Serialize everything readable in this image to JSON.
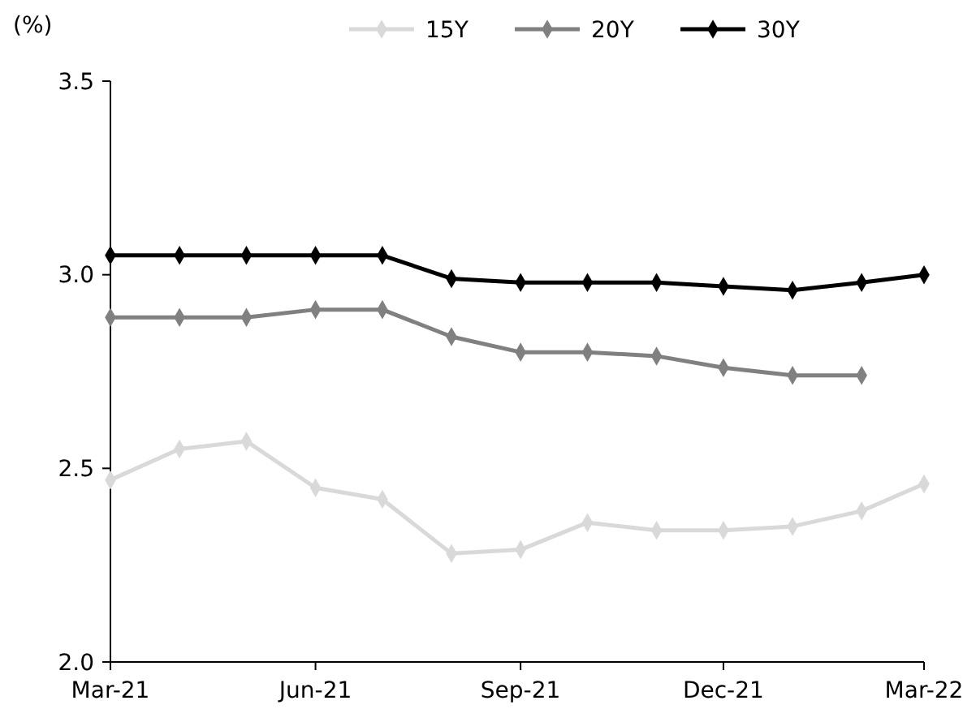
{
  "chart_data": {
    "type": "line",
    "ylabel": "(%)",
    "x": [
      "2021-03",
      "2021-04",
      "2021-05",
      "2021-06",
      "2021-07",
      "2021-08",
      "2021-09",
      "2021-10",
      "2021-11",
      "2021-12",
      "2022-01",
      "2022-02",
      "2022-03"
    ],
    "series": [
      {
        "name": "15Y",
        "color": "#d9d9d9",
        "values": [
          2.47,
          2.55,
          2.57,
          2.45,
          2.42,
          2.28,
          2.29,
          2.36,
          2.34,
          2.34,
          2.35,
          2.39,
          2.46
        ]
      },
      {
        "name": "20Y",
        "color": "#808080",
        "values": [
          2.89,
          2.89,
          2.89,
          2.91,
          2.91,
          2.84,
          2.8,
          2.8,
          2.79,
          2.76,
          2.74,
          2.74,
          null
        ]
      },
      {
        "name": "30Y",
        "color": "#000000",
        "values": [
          3.05,
          3.05,
          3.05,
          3.05,
          3.05,
          2.99,
          2.98,
          2.98,
          2.98,
          2.97,
          2.96,
          2.98,
          3.0
        ]
      }
    ],
    "xlim": [
      "2021-03",
      "2022-03"
    ],
    "xticks": [
      {
        "value": "2021-03",
        "label": "Mar-21"
      },
      {
        "value": "2021-06",
        "label": "Jun-21"
      },
      {
        "value": "2021-09",
        "label": "Sep-21"
      },
      {
        "value": "2021-12",
        "label": "Dec-21"
      },
      {
        "value": "2022-03",
        "label": "Mar-22"
      }
    ],
    "ylim": [
      2.0,
      3.5
    ],
    "yticks": [
      {
        "value": 2.0,
        "label": "2.0"
      },
      {
        "value": 2.5,
        "label": "2.5"
      },
      {
        "value": 3.0,
        "label": "3.0"
      },
      {
        "value": 3.5,
        "label": "3.5"
      }
    ],
    "grid": false,
    "legend": "top",
    "marker": "diamond",
    "line_style": "solid"
  }
}
